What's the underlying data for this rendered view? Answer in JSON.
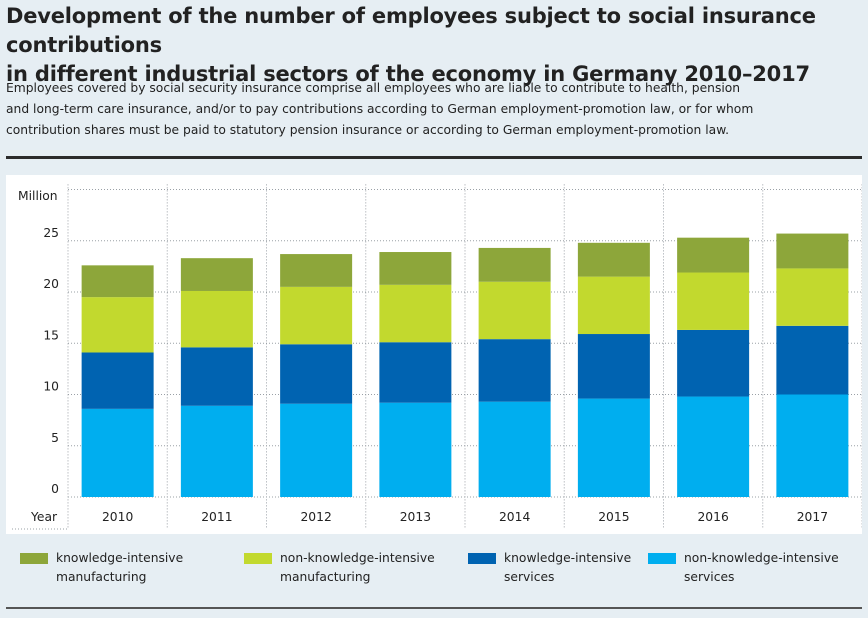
{
  "header": {
    "title_line1": "Development of the number of employees subject to social insurance contributions",
    "title_line2": "in different industrial sectors of the economy in Germany 2010–2017",
    "description_lines": [
      "Employees covered by social security insurance comprise all employees who are liable to contribute to health, pension",
      "and long-term care insurance, and/or to pay contributions according to German employment-promotion law, or for whom",
      "contribution shares must be paid to statutory pension insurance or according to German employment-promotion law."
    ]
  },
  "chart_data": {
    "type": "bar",
    "stacked": true,
    "categories": [
      "2010",
      "2011",
      "2012",
      "2013",
      "2014",
      "2015",
      "2016",
      "2017"
    ],
    "ylabel": "Million",
    "xlabel": "Year",
    "ylim": [
      0,
      30
    ],
    "yticks": [
      "0",
      "5",
      "10",
      "15",
      "20",
      "25"
    ],
    "series": [
      {
        "name": "non-knowledge-intensive services",
        "color": "#00aeef",
        "values": [
          8.6,
          8.9,
          9.1,
          9.2,
          9.3,
          9.6,
          9.8,
          10.0
        ]
      },
      {
        "name": "knowledge-intensive services",
        "color": "#0063b1",
        "values": [
          5.5,
          5.7,
          5.8,
          5.9,
          6.1,
          6.3,
          6.5,
          6.7
        ]
      },
      {
        "name": "non-knowledge-intensive manufacturing",
        "color": "#c2d92e",
        "values": [
          5.4,
          5.5,
          5.6,
          5.6,
          5.6,
          5.6,
          5.6,
          5.6
        ]
      },
      {
        "name": "knowledge-intensive manufacturing",
        "color": "#8da63a",
        "values": [
          3.1,
          3.2,
          3.2,
          3.2,
          3.3,
          3.3,
          3.4,
          3.4
        ]
      }
    ],
    "legend": {
      "position": "bottom",
      "items": [
        {
          "line1": "knowledge-intensive",
          "line2": "manufacturing",
          "color": "#8da63a"
        },
        {
          "line1": "non-knowledge-intensive",
          "line2": "manufacturing",
          "color": "#c2d92e"
        },
        {
          "line1": "knowledge-intensive",
          "line2": "services",
          "color": "#0063b1"
        },
        {
          "line1": "non-knowledge-intensive",
          "line2": "services",
          "color": "#00aeef"
        }
      ]
    }
  }
}
